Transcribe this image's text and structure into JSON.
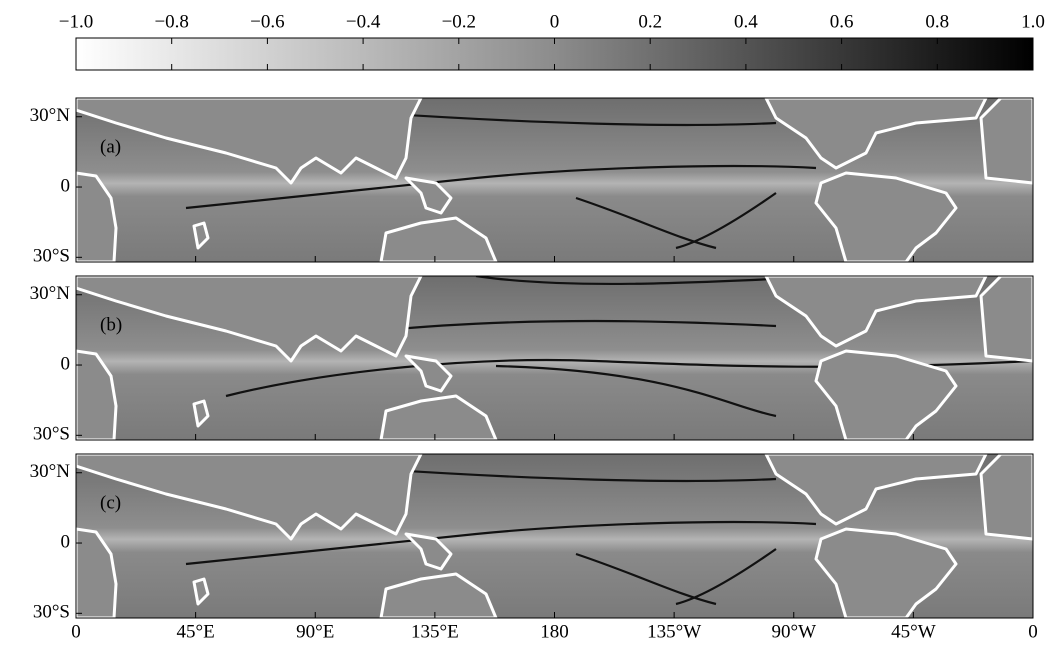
{
  "colorbar": {
    "lim": [
      -1,
      1
    ],
    "ticks": [
      {
        "value": -1,
        "label": "−1.0"
      },
      {
        "value": -0.8,
        "label": "−0.8"
      },
      {
        "value": -0.6,
        "label": "−0.6"
      },
      {
        "value": -0.4,
        "label": "−0.4"
      },
      {
        "value": -0.2,
        "label": "−0.2"
      },
      0,
      0.2,
      0.4,
      0.6,
      0.8,
      {
        "value": 1,
        "label": "1.0"
      }
    ]
  },
  "map": {
    "xlim": [
      0,
      360
    ],
    "ylim": [
      -32,
      38
    ],
    "xticks": [
      0,
      {
        "value": 45,
        "label": "45°E"
      },
      {
        "value": 90,
        "label": "90°E"
      },
      {
        "value": 135,
        "label": "135°E"
      },
      180,
      {
        "value": 225,
        "label": "135°W"
      },
      {
        "value": 270,
        "label": "90°W"
      },
      {
        "value": 315,
        "label": "45°W"
      },
      {
        "value": 360,
        "label": "0"
      }
    ],
    "yticks": [
      {
        "value": 30,
        "label": "30°N"
      },
      0,
      {
        "value": -30,
        "label": "30°S"
      }
    ]
  },
  "panels": [
    {
      "label": "(a)"
    },
    {
      "label": "(b)"
    },
    {
      "label": "(c)"
    }
  ]
}
